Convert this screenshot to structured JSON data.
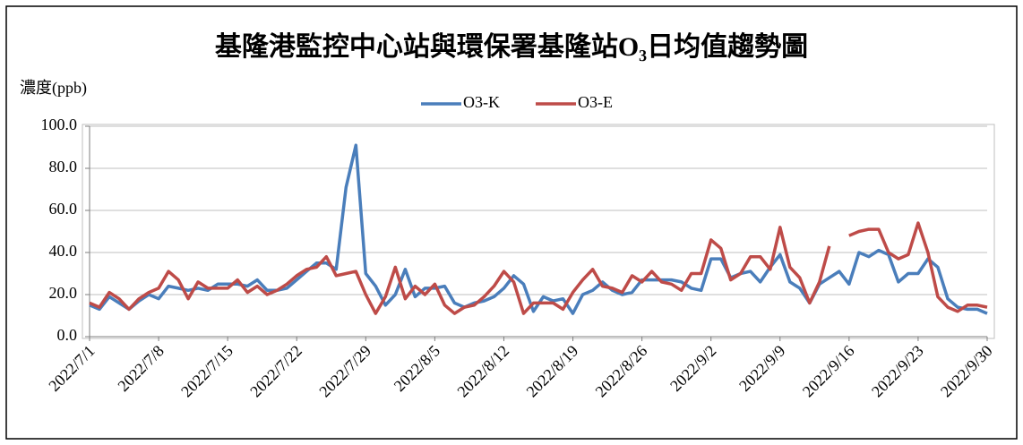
{
  "chart_data": {
    "type": "line",
    "title": "基隆港監控中心站與環保署基隆站O₃日均值趨勢圖",
    "y_label": "濃度(ppb)",
    "categories": [
      "2022/7/1",
      null,
      null,
      null,
      null,
      null,
      null,
      "2022/7/8",
      null,
      null,
      null,
      null,
      null,
      null,
      "2022/7/15",
      null,
      null,
      null,
      null,
      null,
      null,
      "2022/7/22",
      null,
      null,
      null,
      null,
      null,
      null,
      "2022/7/29",
      null,
      null,
      null,
      null,
      null,
      null,
      "2022/8/5",
      null,
      null,
      null,
      null,
      null,
      null,
      "2022/8/12",
      null,
      null,
      null,
      null,
      null,
      null,
      "2022/8/19",
      null,
      null,
      null,
      null,
      null,
      null,
      "2022/8/26",
      null,
      null,
      null,
      null,
      null,
      null,
      "2022/9/2",
      null,
      null,
      null,
      null,
      null,
      null,
      "2022/9/9",
      null,
      null,
      null,
      null,
      null,
      null,
      "2022/9/16",
      null,
      null,
      null,
      null,
      null,
      null,
      "2022/9/23",
      null,
      null,
      null,
      null,
      null,
      null,
      "2022/9/30"
    ],
    "series": [
      {
        "name": "O3-K",
        "color": "#4a7ebb",
        "values": [
          15,
          13,
          19,
          16,
          13,
          17,
          20,
          18,
          24,
          23,
          22,
          23,
          22,
          25,
          25,
          25,
          24,
          27,
          22,
          22,
          23,
          27,
          31,
          35,
          35,
          32,
          71,
          91,
          30,
          24,
          15,
          20,
          32,
          19,
          23,
          23,
          24,
          16,
          14,
          16,
          17,
          19,
          23,
          29,
          25,
          12,
          19,
          17,
          18,
          11,
          20,
          22,
          26,
          22,
          20,
          21,
          27,
          27,
          27,
          27,
          26,
          23,
          22,
          37,
          37,
          28,
          30,
          31,
          26,
          33,
          39,
          26,
          23,
          16,
          25,
          28,
          31,
          25,
          40,
          38,
          41,
          39,
          26,
          30,
          30,
          37,
          33,
          18,
          14,
          13,
          13,
          11
        ]
      },
      {
        "name": "O3-E",
        "color": "#be4b48",
        "values": [
          16,
          14,
          21,
          18,
          13,
          18,
          21,
          23,
          31,
          27,
          18,
          26,
          23,
          23,
          23,
          27,
          21,
          24,
          20,
          22,
          25,
          29,
          32,
          33,
          38,
          29,
          30,
          31,
          20,
          11,
          19,
          33,
          18,
          24,
          20,
          25,
          15,
          11,
          14,
          15,
          19,
          24,
          31,
          26,
          11,
          16,
          16,
          16,
          13,
          21,
          27,
          32,
          24,
          23,
          21,
          29,
          26,
          31,
          26,
          25,
          22,
          30,
          30,
          46,
          42,
          27,
          30,
          38,
          38,
          32,
          52,
          33,
          28,
          16,
          26,
          43,
          null,
          48,
          50,
          51,
          51,
          40,
          37,
          39,
          54,
          40,
          19,
          14,
          12,
          15,
          15,
          14
        ]
      }
    ],
    "ylim": [
      0,
      100
    ],
    "yticks": [
      {
        "value": 0,
        "label": "0.0"
      },
      {
        "value": 20,
        "label": "20.0"
      },
      {
        "value": 40,
        "label": "40.0"
      },
      {
        "value": 60,
        "label": "60.0"
      },
      {
        "value": 80,
        "label": "80.0"
      },
      {
        "value": 100,
        "label": "100.0"
      }
    ],
    "grid": true,
    "legend": "top"
  }
}
